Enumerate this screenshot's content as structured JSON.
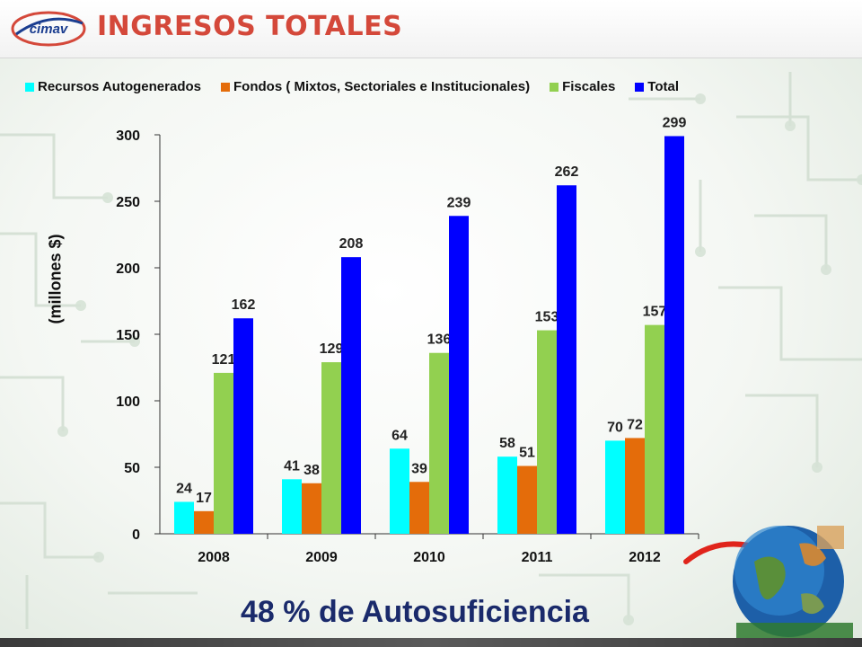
{
  "header": {
    "title": "INGRESOS TOTALES",
    "logo_text": "cimav"
  },
  "chart_data": {
    "type": "bar",
    "title": "",
    "xlabel": "",
    "ylabel": "(millones $)",
    "ylim": [
      0,
      300
    ],
    "yticks": [
      0,
      50,
      100,
      150,
      200,
      250,
      300
    ],
    "grid": false,
    "legend_position": "top",
    "categories": [
      "2008",
      "2009",
      "2010",
      "2011",
      "2012"
    ],
    "series": [
      {
        "name": "Recursos Autogenerados",
        "color": "#00ffff",
        "values": [
          24,
          41,
          64,
          58,
          70
        ]
      },
      {
        "name": "Fondos ( Mixtos, Sectoriales e Institucionales)",
        "color": "#e46c0a",
        "values": [
          17,
          38,
          39,
          51,
          72
        ]
      },
      {
        "name": "Fiscales",
        "color": "#92d050",
        "values": [
          121,
          129,
          136,
          153,
          157
        ]
      },
      {
        "name": "Total",
        "color": "#0000ff",
        "values": [
          162,
          208,
          239,
          262,
          299
        ]
      }
    ]
  },
  "footer": {
    "text": "48 % de Autosuficiencia"
  }
}
